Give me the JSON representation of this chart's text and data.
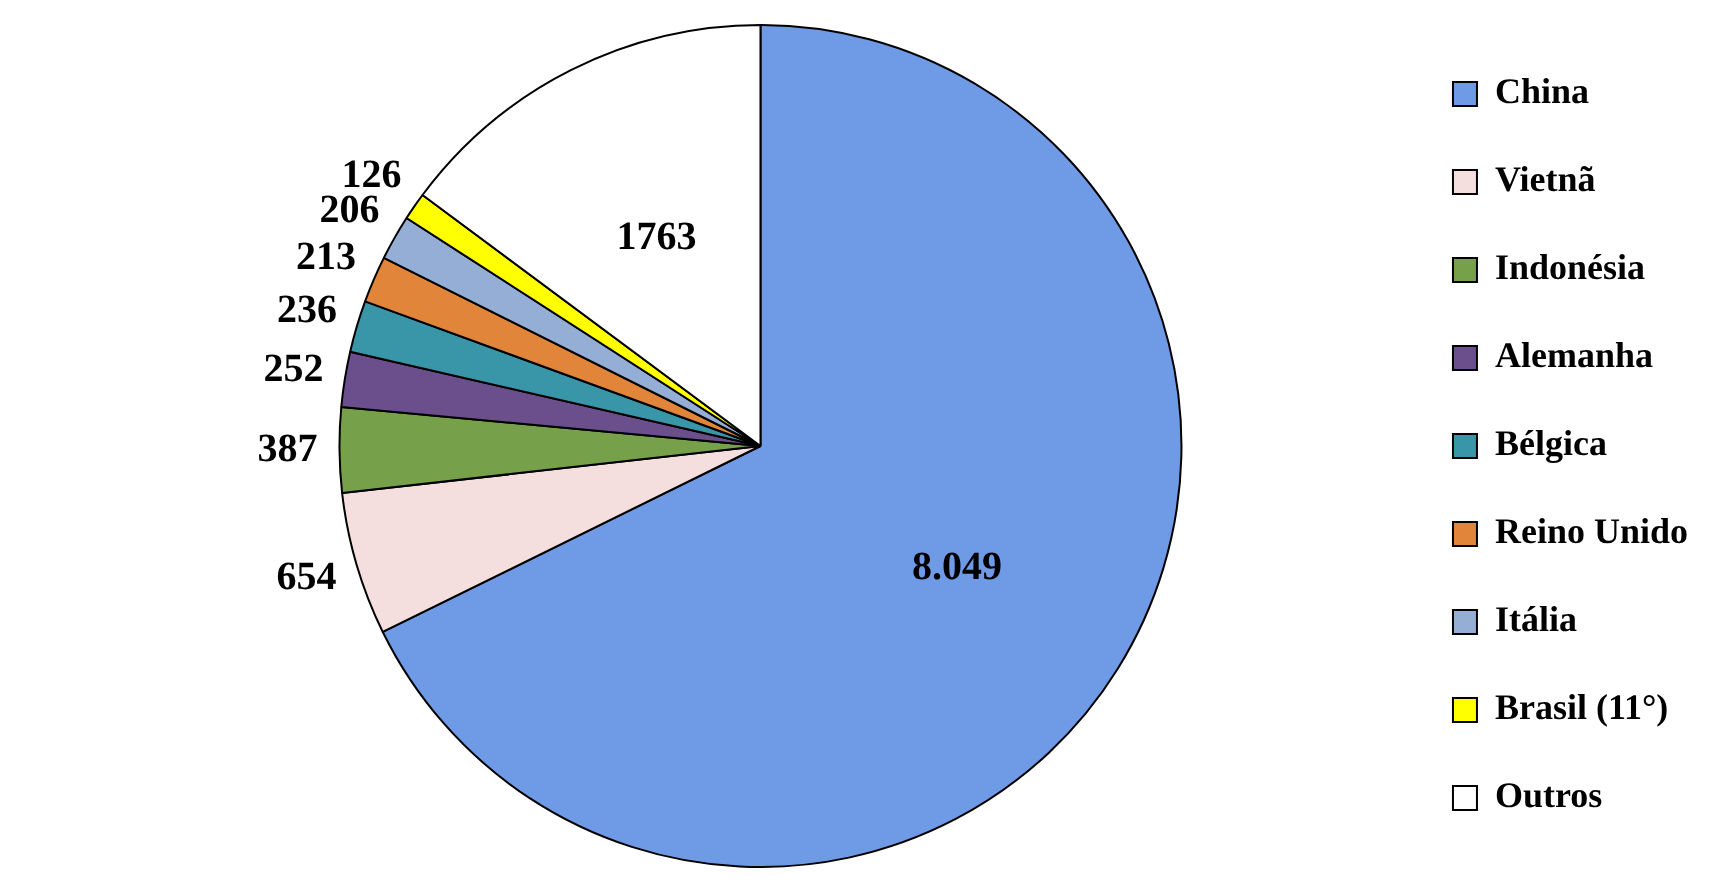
{
  "chart_data": {
    "type": "pie",
    "categories": [
      "China",
      "Vietnã",
      "Indonésia",
      "Alemanha",
      "Bélgica",
      "Reino Unido",
      "Itália",
      "Brasil (11°)",
      "Outros"
    ],
    "values": [
      8049,
      654,
      387,
      252,
      236,
      213,
      206,
      126,
      1763
    ],
    "value_labels": [
      "8.049",
      "654",
      "387",
      "252",
      "236",
      "213",
      "206",
      "126",
      "1763"
    ],
    "colors": [
      "#6f9be6",
      "#f4dede",
      "#77a04a",
      "#6a4f8c",
      "#3896a8",
      "#e0853a",
      "#94aed6",
      "#ffff00",
      "#ffffff"
    ],
    "legend": "right"
  }
}
